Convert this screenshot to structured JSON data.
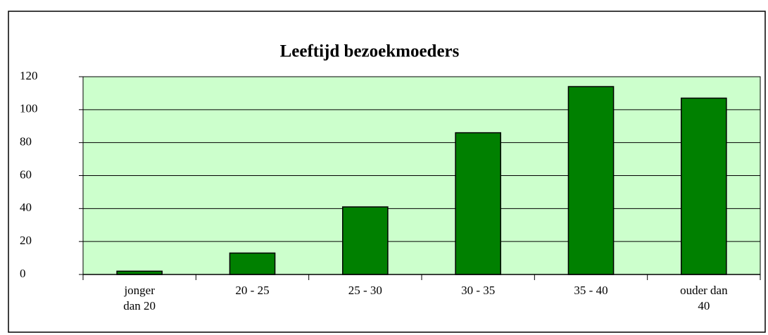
{
  "chart_data": {
    "type": "bar",
    "title": "Leeftijd bezoekmoeders",
    "categories": [
      "jonger\ndan 20",
      "20 - 25",
      "25 - 30",
      "30 - 35",
      "35 - 40",
      "ouder dan\n40"
    ],
    "values": [
      2,
      13,
      41,
      86,
      114,
      107
    ],
    "color": "#008000",
    "ylim": [
      0,
      120
    ],
    "yticks": [
      0,
      20,
      40,
      60,
      80,
      100,
      120
    ],
    "grid": true
  }
}
